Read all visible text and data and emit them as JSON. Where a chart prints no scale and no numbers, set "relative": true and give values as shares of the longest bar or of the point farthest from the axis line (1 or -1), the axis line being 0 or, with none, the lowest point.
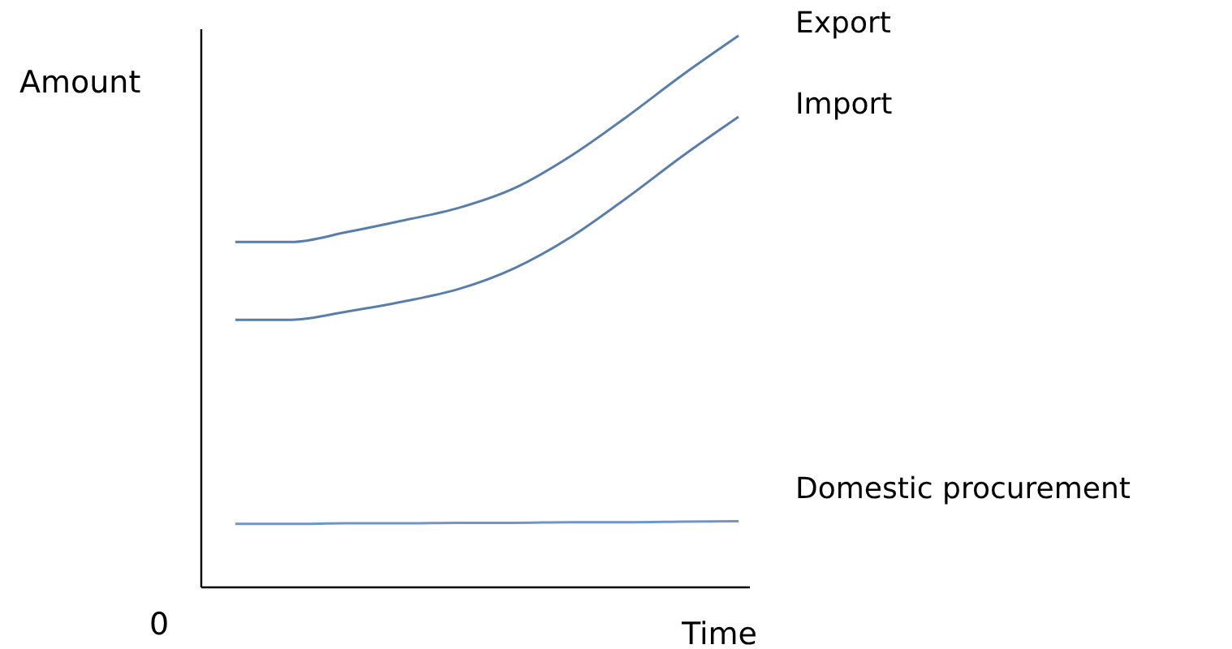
{
  "chart_data": {
    "type": "line",
    "relative": true,
    "xlabel": "Time",
    "ylabel": "Amount",
    "annotations": [
      "0"
    ],
    "categories": [
      null,
      null,
      null,
      null,
      null,
      null,
      null,
      null,
      null,
      null
    ],
    "series": [
      {
        "name": "Export",
        "color": "#5a7ea8",
        "values": [
          0.626,
          0.626,
          0.644,
          0.665,
          0.688,
          0.724,
          0.782,
          0.853,
          0.929,
          1
        ]
      },
      {
        "name": "Import",
        "color": "#5a7ea8",
        "values": [
          0.485,
          0.485,
          0.5,
          0.518,
          0.541,
          0.579,
          0.635,
          0.706,
          0.782,
          0.853
        ]
      },
      {
        "name": "Domestic procurement",
        "color": "#6f96c8",
        "values": [
          0.115,
          0.115,
          0.116,
          0.116,
          0.117,
          0.117,
          0.118,
          0.118,
          0.119,
          0.12
        ]
      }
    ]
  }
}
